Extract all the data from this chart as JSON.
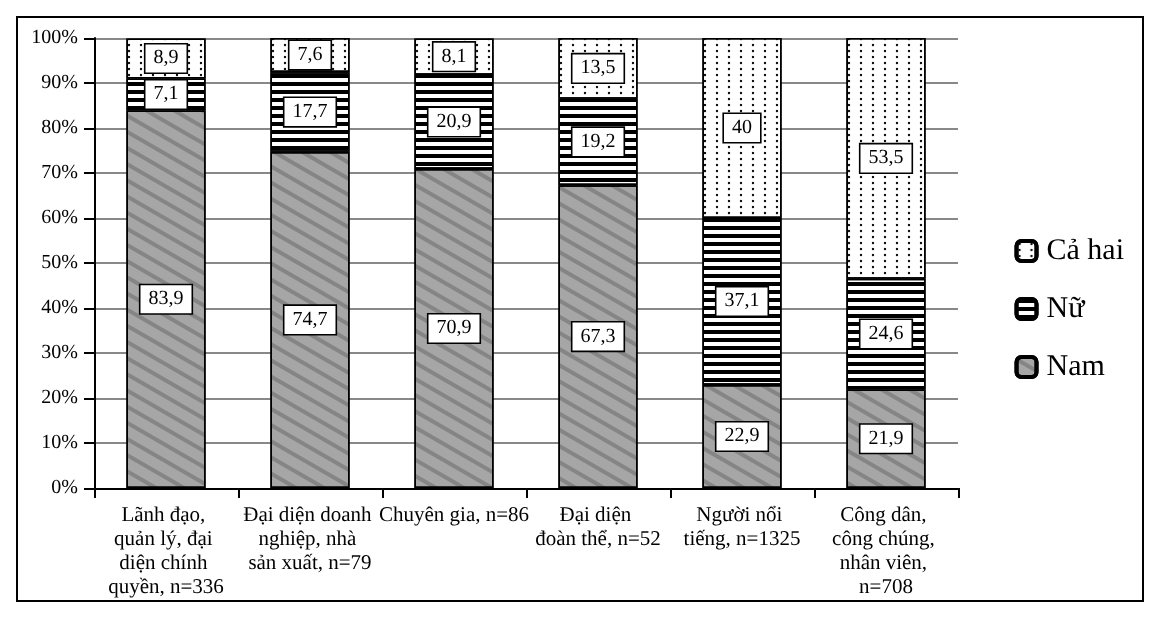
{
  "chart_data": {
    "type": "bar",
    "stacked": true,
    "categories": [
      "Lãnh đạo, quản lý, đại diện chính quyền, n=336",
      "Đại diện doanh nghiệp, nhà sản xuất, n=79",
      "Chuyên gia, n=86",
      "Đại diện đoàn thể, n=52",
      "Người nổi tiếng, n=1325",
      "Công dân, công chúng, nhân viên, n=708"
    ],
    "series": [
      {
        "name": "Nam",
        "color": "#a6a6a6",
        "values": [
          83.9,
          74.7,
          70.9,
          67.3,
          22.9,
          21.9
        ],
        "value_labels": [
          "83,9",
          "74,7",
          "70,9",
          "67,3",
          "22,9",
          "21,9"
        ]
      },
      {
        "name": "Nữ",
        "color": "#ffffff",
        "values": [
          7.1,
          17.7,
          20.9,
          19.2,
          37.1,
          24.6
        ],
        "value_labels": [
          "7,1",
          "17,7",
          "20,9",
          "19,2",
          "37,1",
          "24,6"
        ]
      },
      {
        "name": "Cả hai",
        "color": "#ffffff",
        "values": [
          8.9,
          7.6,
          8.1,
          13.5,
          40,
          53.5
        ],
        "value_labels": [
          "8,9",
          "7,6",
          "8,1",
          "13,5",
          "40",
          "53,5"
        ]
      }
    ],
    "ylim": [
      0,
      100
    ],
    "yticks": [
      {
        "value": 0,
        "label": "0%"
      },
      {
        "value": 10,
        "label": "10%"
      },
      {
        "value": 20,
        "label": "20%"
      },
      {
        "value": 30,
        "label": "30%"
      },
      {
        "value": 40,
        "label": "40%"
      },
      {
        "value": 50,
        "label": "50%"
      },
      {
        "value": 60,
        "label": "60%"
      },
      {
        "value": 70,
        "label": "70%"
      },
      {
        "value": 80,
        "label": "80%"
      },
      {
        "value": 90,
        "label": "90%"
      },
      {
        "value": 100,
        "label": "100%"
      }
    ],
    "grid": "y",
    "legend": "right"
  }
}
